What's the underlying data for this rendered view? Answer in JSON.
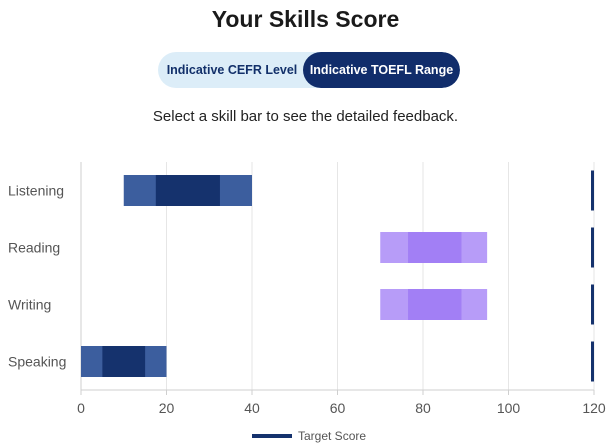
{
  "page": {
    "title": "Your Skills Score",
    "toggle": {
      "left_label": "Indicative CEFR Level",
      "right_label": "Indicative TOEFL Range",
      "active": "right"
    },
    "subtitle": "Select a skill bar to see the detailed feedback."
  },
  "chart_data": {
    "type": "bar",
    "orientation": "horizontal",
    "categories": [
      "Listening",
      "Reading",
      "Writing",
      "Speaking"
    ],
    "xlim": [
      0,
      120
    ],
    "xticks": [
      0,
      20,
      40,
      60,
      80,
      100,
      120
    ],
    "grid": true,
    "ranges": [
      {
        "category": "Listening",
        "outer": [
          10,
          40
        ],
        "inner": [
          17.5,
          32.5
        ],
        "color_outer": "#3c5e9e",
        "color_inner": "#15326d"
      },
      {
        "category": "Reading",
        "outer": [
          70,
          95
        ],
        "inner": [
          76.5,
          89
        ],
        "color_outer": "#b79cf8",
        "color_inner": "#a27ff5"
      },
      {
        "category": "Writing",
        "outer": [
          70,
          95
        ],
        "inner": [
          76.5,
          89
        ],
        "color_outer": "#b79cf8",
        "color_inner": "#a27ff5"
      },
      {
        "category": "Speaking",
        "outer": [
          0,
          20
        ],
        "inner": [
          5,
          15
        ],
        "color_outer": "#3c5e9e",
        "color_inner": "#15326d"
      }
    ],
    "target_score": 120,
    "target_color": "#15326d",
    "legend": {
      "label": "Target Score",
      "position": "bottom"
    }
  }
}
